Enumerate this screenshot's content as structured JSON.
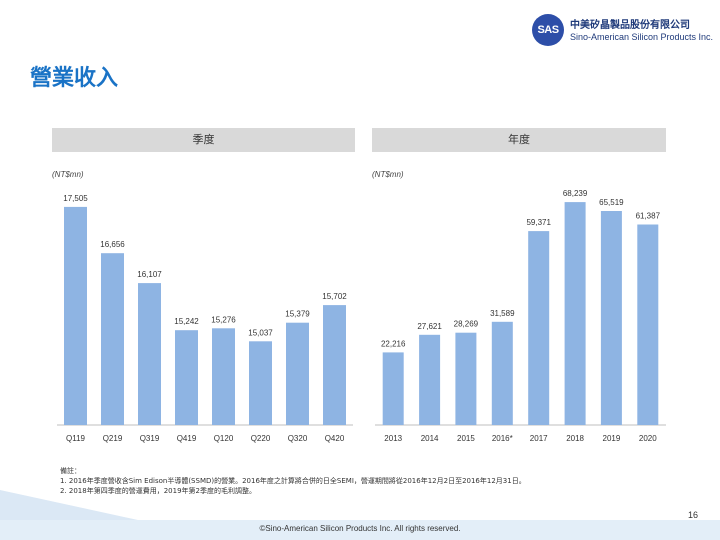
{
  "logo": {
    "mark": "SAS",
    "name_zh": "中美矽晶製品股份有限公司",
    "name_en": "Sino-American Silicon Products Inc."
  },
  "page_title": "營業收入",
  "colors": {
    "bar": "#8eb4e3",
    "title": "#1a73c6",
    "panel_header": "#d9d9d9"
  },
  "notes": {
    "heading": "備註：",
    "line1": "1. 2016年季度營收含Sim Edison半導體(SSMD)的營業。2016年度之計算將合併的日全SEMI，營運期間將從2016年12月2日至2016年12月31日。",
    "line2": "2. 2018年第四季度的營運費用，2019年第2季度的毛利調整。"
  },
  "footer": {
    "page_number": "16",
    "copyright": "©Sino-American Silicon Products Inc. All rights reserved."
  },
  "chart_data": [
    {
      "type": "bar",
      "title": "季度",
      "unit": "(NT$mn)",
      "categories": [
        "Q119",
        "Q219",
        "Q319",
        "Q419",
        "Q120",
        "Q220",
        "Q320",
        "Q420"
      ],
      "values": [
        17505,
        16656,
        16107,
        15242,
        15276,
        15037,
        15379,
        15702
      ],
      "value_labels": [
        "17,505",
        "16,656",
        "16,107",
        "15,242",
        "15,276",
        "15,037",
        "15,379",
        "15,702"
      ],
      "ylim": [
        13500,
        18000
      ],
      "grid": false,
      "legend": "none"
    },
    {
      "type": "bar",
      "title": "年度",
      "unit": "(NT$mn)",
      "categories": [
        "2013",
        "2014",
        "2015",
        "2016*",
        "2017",
        "2018",
        "2019",
        "2020"
      ],
      "values": [
        22216,
        27621,
        28269,
        31589,
        59371,
        68239,
        65519,
        61387
      ],
      "value_labels": [
        "22,216",
        "27,621",
        "28,269",
        "31,589",
        "59,371",
        "68,239",
        "65,519",
        "61,387"
      ],
      "ylim": [
        0,
        75000
      ],
      "grid": false,
      "legend": "none"
    }
  ]
}
